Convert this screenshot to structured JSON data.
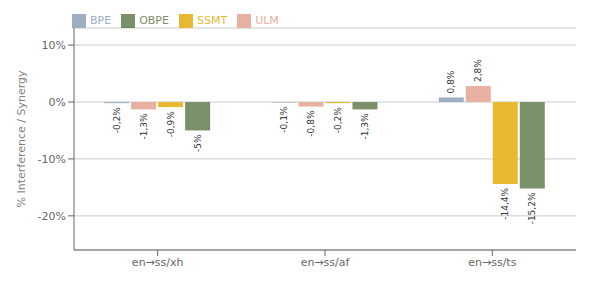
{
  "chart_data": {
    "type": "bar",
    "categories": [
      "en→ss/xh",
      "en→ss/af",
      "en→ss/ts"
    ],
    "series": [
      {
        "name": "BPE",
        "color": "#9dafc0",
        "values": [
          -0.2,
          -0.1,
          0.8
        ],
        "value_labels": [
          "-0,2%",
          "-0,1%",
          "0,8%"
        ]
      },
      {
        "name": "ULM",
        "color": "#e8b0a0",
        "values": [
          -1.3,
          -0.8,
          2.8
        ],
        "value_labels": [
          "-1,3%",
          "-0,8%",
          "2,8%"
        ]
      },
      {
        "name": "SSMT",
        "color": "#e8b830",
        "values": [
          -0.9,
          -0.2,
          -14.4
        ],
        "value_labels": [
          "-0,9%",
          "-0,2%",
          "-14,4%"
        ]
      },
      {
        "name": "OBPE",
        "color": "#7a9068",
        "values": [
          -5.0,
          -1.3,
          -15.2
        ],
        "value_labels": [
          "-5%",
          "-1,3%",
          "-15,2%"
        ]
      }
    ],
    "ylim": [
      -26,
      13
    ],
    "yticks": [
      {
        "value": 10,
        "label": "10%"
      },
      {
        "value": 0,
        "label": "0%"
      },
      {
        "value": -10,
        "label": "-10%"
      },
      {
        "value": -20,
        "label": "-20%"
      }
    ],
    "ylabel": "% Interference / Synergy",
    "grid": true,
    "legend": "upper left",
    "data_labels": true
  }
}
